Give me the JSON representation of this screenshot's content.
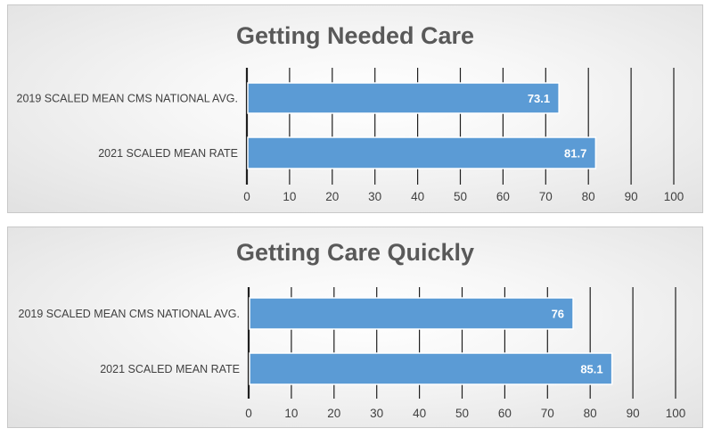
{
  "chart_data": [
    {
      "type": "bar",
      "orientation": "horizontal",
      "title": "Getting Needed Care",
      "categories": [
        "2019 SCALED MEAN CMS NATIONAL AVG.",
        "2021 SCALED MEAN RATE"
      ],
      "values": [
        73.1,
        81.7
      ],
      "value_labels": [
        "73.1",
        "81.7"
      ],
      "xlim": [
        0,
        100
      ],
      "xticks": [
        "0",
        "10",
        "20",
        "30",
        "40",
        "50",
        "60",
        "70",
        "80",
        "90",
        "100"
      ],
      "grid": true,
      "bar_color": "#5b9bd5"
    },
    {
      "type": "bar",
      "orientation": "horizontal",
      "title": "Getting Care Quickly",
      "categories": [
        "2019 SCALED MEAN CMS NATIONAL AVG.",
        "2021 SCALED MEAN RATE"
      ],
      "values": [
        76,
        85.1
      ],
      "value_labels": [
        "76",
        "85.1"
      ],
      "xlim": [
        0,
        100
      ],
      "xticks": [
        "0",
        "10",
        "20",
        "30",
        "40",
        "50",
        "60",
        "70",
        "80",
        "90",
        "100"
      ],
      "grid": true,
      "bar_color": "#5b9bd5"
    }
  ]
}
